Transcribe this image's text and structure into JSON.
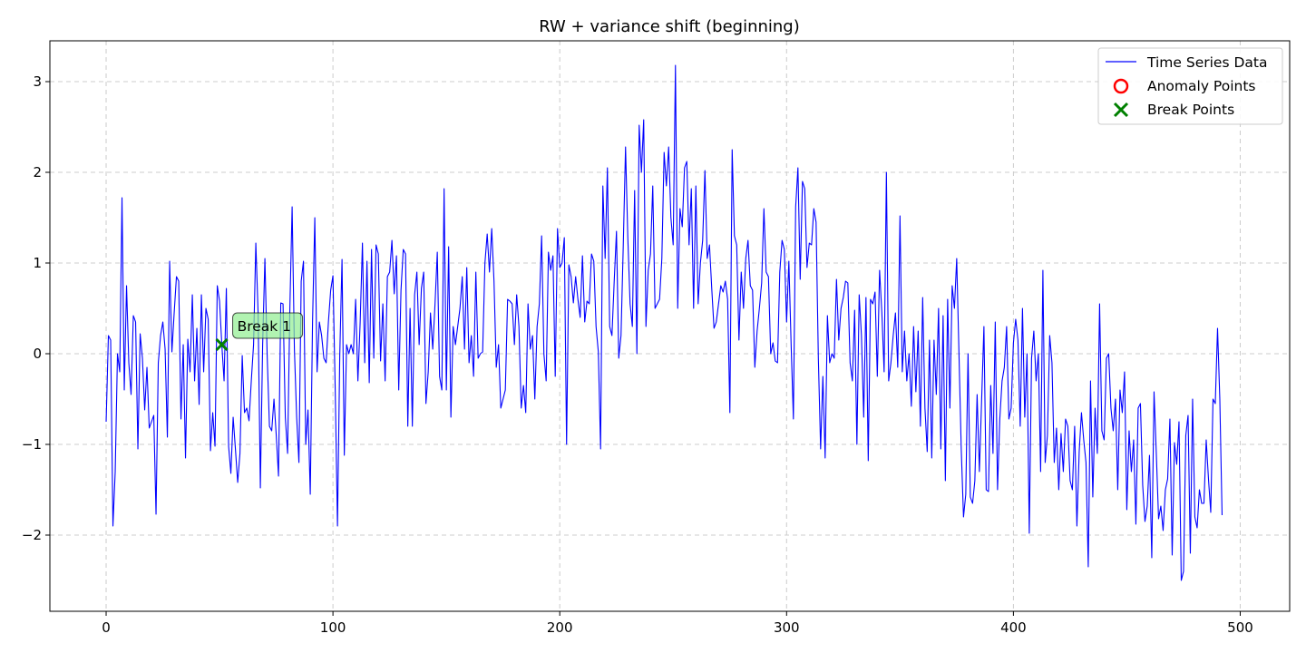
{
  "chart_data": {
    "type": "line",
    "title": "RW + variance shift (beginning)",
    "xlabel": "",
    "ylabel": "",
    "xlim": [
      -24.8,
      521.8
    ],
    "ylim": [
      -2.84,
      3.45
    ],
    "xticks": [
      0,
      100,
      200,
      300,
      400,
      500
    ],
    "yticks": [
      -2,
      -1,
      0,
      1,
      2,
      3
    ],
    "grid": true,
    "legend_position": "top-right",
    "legend": [
      {
        "label": "Time Series Data",
        "marker": "line",
        "color": "#0000ff"
      },
      {
        "label": "Anomaly Points",
        "marker": "circle",
        "color": "#ff0000"
      },
      {
        "label": "Break Points",
        "marker": "x",
        "color": "#008000"
      }
    ],
    "series": [
      {
        "name": "Time Series Data",
        "color": "#0000ff",
        "x_start": 0,
        "x_step": 1,
        "values": [
          -0.75,
          0.2,
          0.15,
          -1.9,
          -1.3,
          0.0,
          -0.2,
          1.72,
          -0.4,
          0.75,
          -0.1,
          -0.45,
          0.42,
          0.35,
          -1.05,
          0.22,
          -0.05,
          -0.62,
          -0.15,
          -0.82,
          -0.75,
          -0.68,
          -1.77,
          -0.1,
          0.2,
          0.35,
          0.05,
          -0.92,
          1.02,
          0.02,
          0.45,
          0.85,
          0.8,
          -0.72,
          0.1,
          -1.15,
          0.16,
          -0.2,
          0.65,
          -0.3,
          0.28,
          -0.56,
          0.65,
          -0.2,
          0.5,
          0.38,
          -1.07,
          -0.65,
          -1.02,
          0.75,
          0.58,
          0.1,
          -0.3,
          0.72,
          -1.02,
          -1.32,
          -0.7,
          -1.05,
          -1.42,
          -1.1,
          -0.02,
          -0.65,
          -0.6,
          -0.74,
          -0.3,
          0.1,
          1.22,
          0.45,
          -1.48,
          0.1,
          1.05,
          -0.02,
          -0.8,
          -0.85,
          -0.5,
          -0.9,
          -1.35,
          0.56,
          0.55,
          -0.7,
          -1.1,
          0.5,
          1.62,
          0.05,
          -0.7,
          -1.2,
          0.8,
          1.02,
          -1.0,
          -0.62,
          -1.55,
          0.35,
          1.5,
          -0.2,
          0.35,
          0.2,
          -0.05,
          -0.1,
          0.35,
          0.7,
          0.86,
          -0.4,
          -1.9,
          -0.02,
          1.04,
          -1.12,
          0.1,
          0.0,
          0.1,
          0.0,
          0.6,
          -0.3,
          0.35,
          1.22,
          -0.1,
          1.02,
          -0.32,
          1.15,
          -0.05,
          1.2,
          1.1,
          -0.08,
          0.55,
          -0.3,
          0.85,
          0.9,
          1.25,
          0.66,
          1.08,
          -0.4,
          0.7,
          1.15,
          1.1,
          -0.8,
          0.5,
          -0.8,
          0.65,
          0.9,
          0.1,
          0.72,
          0.9,
          -0.55,
          -0.2,
          0.45,
          0.05,
          0.55,
          1.12,
          -0.25,
          -0.4,
          1.82,
          -0.4,
          1.18,
          -0.7,
          0.3,
          0.1,
          0.3,
          0.5,
          0.85,
          0.05,
          0.95,
          -0.1,
          0.2,
          -0.25,
          0.9,
          -0.05,
          0.0,
          0.02,
          1.0,
          1.32,
          0.9,
          1.38,
          0.8,
          -0.15,
          0.1,
          -0.6,
          -0.5,
          -0.4,
          0.6,
          0.58,
          0.55,
          0.1,
          0.65,
          0.3,
          -0.6,
          -0.35,
          -0.65,
          0.55,
          0.05,
          0.2,
          -0.5,
          0.3,
          0.55,
          1.3,
          0.0,
          -0.3,
          1.12,
          0.92,
          1.08,
          -0.25,
          1.38,
          0.95,
          1.0,
          1.28,
          -1.0,
          0.98,
          0.85,
          0.56,
          0.85,
          0.6,
          0.4,
          1.08,
          0.35,
          0.58,
          0.55,
          1.1,
          1.02,
          0.3,
          0.02,
          -1.05,
          1.85,
          1.05,
          2.05,
          0.3,
          0.2,
          0.8,
          1.35,
          -0.05,
          0.2,
          1.2,
          2.28,
          1.28,
          0.55,
          0.3,
          1.8,
          0.0,
          2.52,
          2.0,
          2.58,
          0.3,
          0.92,
          1.1,
          1.85,
          0.5,
          0.55,
          0.6,
          1.05,
          2.22,
          1.85,
          2.28,
          1.5,
          1.2,
          3.18,
          0.5,
          1.6,
          1.4,
          2.05,
          2.12,
          1.2,
          1.82,
          0.5,
          1.85,
          0.55,
          1.0,
          1.25,
          2.02,
          1.05,
          1.2,
          0.72,
          0.28,
          0.35,
          0.55,
          0.75,
          0.68,
          0.8,
          0.6,
          -0.65,
          2.25,
          1.3,
          1.2,
          0.15,
          0.9,
          0.5,
          1.05,
          1.25,
          0.75,
          0.7,
          -0.15,
          0.25,
          0.5,
          0.78,
          1.6,
          0.9,
          0.85,
          0.0,
          0.12,
          -0.08,
          -0.1,
          0.9,
          1.25,
          1.15,
          0.35,
          1.02,
          0.1,
          -0.72,
          1.62,
          2.05,
          0.82,
          1.9,
          1.82,
          0.95,
          1.22,
          1.2,
          1.6,
          1.45,
          -0.05,
          -1.05,
          -0.25,
          -1.15,
          0.42,
          -0.1,
          0.0,
          -0.05,
          0.82,
          0.15,
          0.5,
          0.62,
          0.8,
          0.78,
          -0.1,
          -0.3,
          0.48,
          -1.0,
          0.65,
          0.2,
          -0.7,
          0.62,
          -1.18,
          0.6,
          0.55,
          0.68,
          -0.25,
          0.92,
          0.45,
          -0.2,
          2.0,
          -0.3,
          -0.1,
          0.2,
          0.45,
          -0.15,
          1.52,
          -0.2,
          0.25,
          -0.3,
          0.0,
          -0.58,
          0.3,
          -0.42,
          0.25,
          -0.8,
          0.62,
          -0.6,
          -1.08,
          0.15,
          -1.15,
          0.15,
          -0.45,
          0.5,
          -1.05,
          0.42,
          -1.4,
          0.6,
          -0.6,
          0.75,
          0.5,
          1.05,
          0.0,
          -1.05,
          -1.8,
          -1.55,
          0.0,
          -1.58,
          -1.65,
          -1.4,
          -0.45,
          -1.3,
          -0.5,
          0.3,
          -1.5,
          -1.52,
          -0.35,
          -1.1,
          0.35,
          -1.5,
          -0.72,
          -0.3,
          -0.15,
          0.3,
          -0.72,
          -0.6,
          0.12,
          0.38,
          0.15,
          -0.8,
          0.5,
          -0.7,
          0.0,
          -1.98,
          -0.05,
          0.25,
          -0.3,
          0.0,
          -1.3,
          0.92,
          -1.2,
          -0.9,
          0.2,
          -0.1,
          -1.2,
          -0.82,
          -1.5,
          -0.88,
          -1.3,
          -0.72,
          -0.8,
          -1.4,
          -1.5,
          -0.8,
          -1.9,
          -1.08,
          -0.65,
          -0.95,
          -1.2,
          -2.35,
          -0.3,
          -1.58,
          -0.6,
          -1.1,
          0.55,
          -0.85,
          -0.95,
          -0.05,
          0.0,
          -0.6,
          -0.85,
          -0.5,
          -1.5,
          -0.4,
          -0.65,
          -0.2,
          -1.72,
          -0.85,
          -1.3,
          -0.95,
          -1.88,
          -0.6,
          -0.55,
          -1.45,
          -1.85,
          -1.68,
          -1.12,
          -2.25,
          -0.42,
          -1.1,
          -1.82,
          -1.68,
          -1.95,
          -1.5,
          -1.38,
          -0.72,
          -2.22,
          -0.98,
          -1.22,
          -0.75,
          -2.5,
          -2.4,
          -0.9,
          -0.68,
          -2.2,
          -0.5,
          -1.8,
          -1.92,
          -1.5,
          -1.65,
          -1.65,
          -0.95,
          -1.38,
          -1.75,
          -0.5,
          -0.55,
          0.28,
          -0.5,
          -1.78
        ]
      }
    ],
    "anomaly_points": [],
    "break_points": [
      {
        "x": 51,
        "y": 0.1,
        "label": "Break 1"
      }
    ]
  }
}
